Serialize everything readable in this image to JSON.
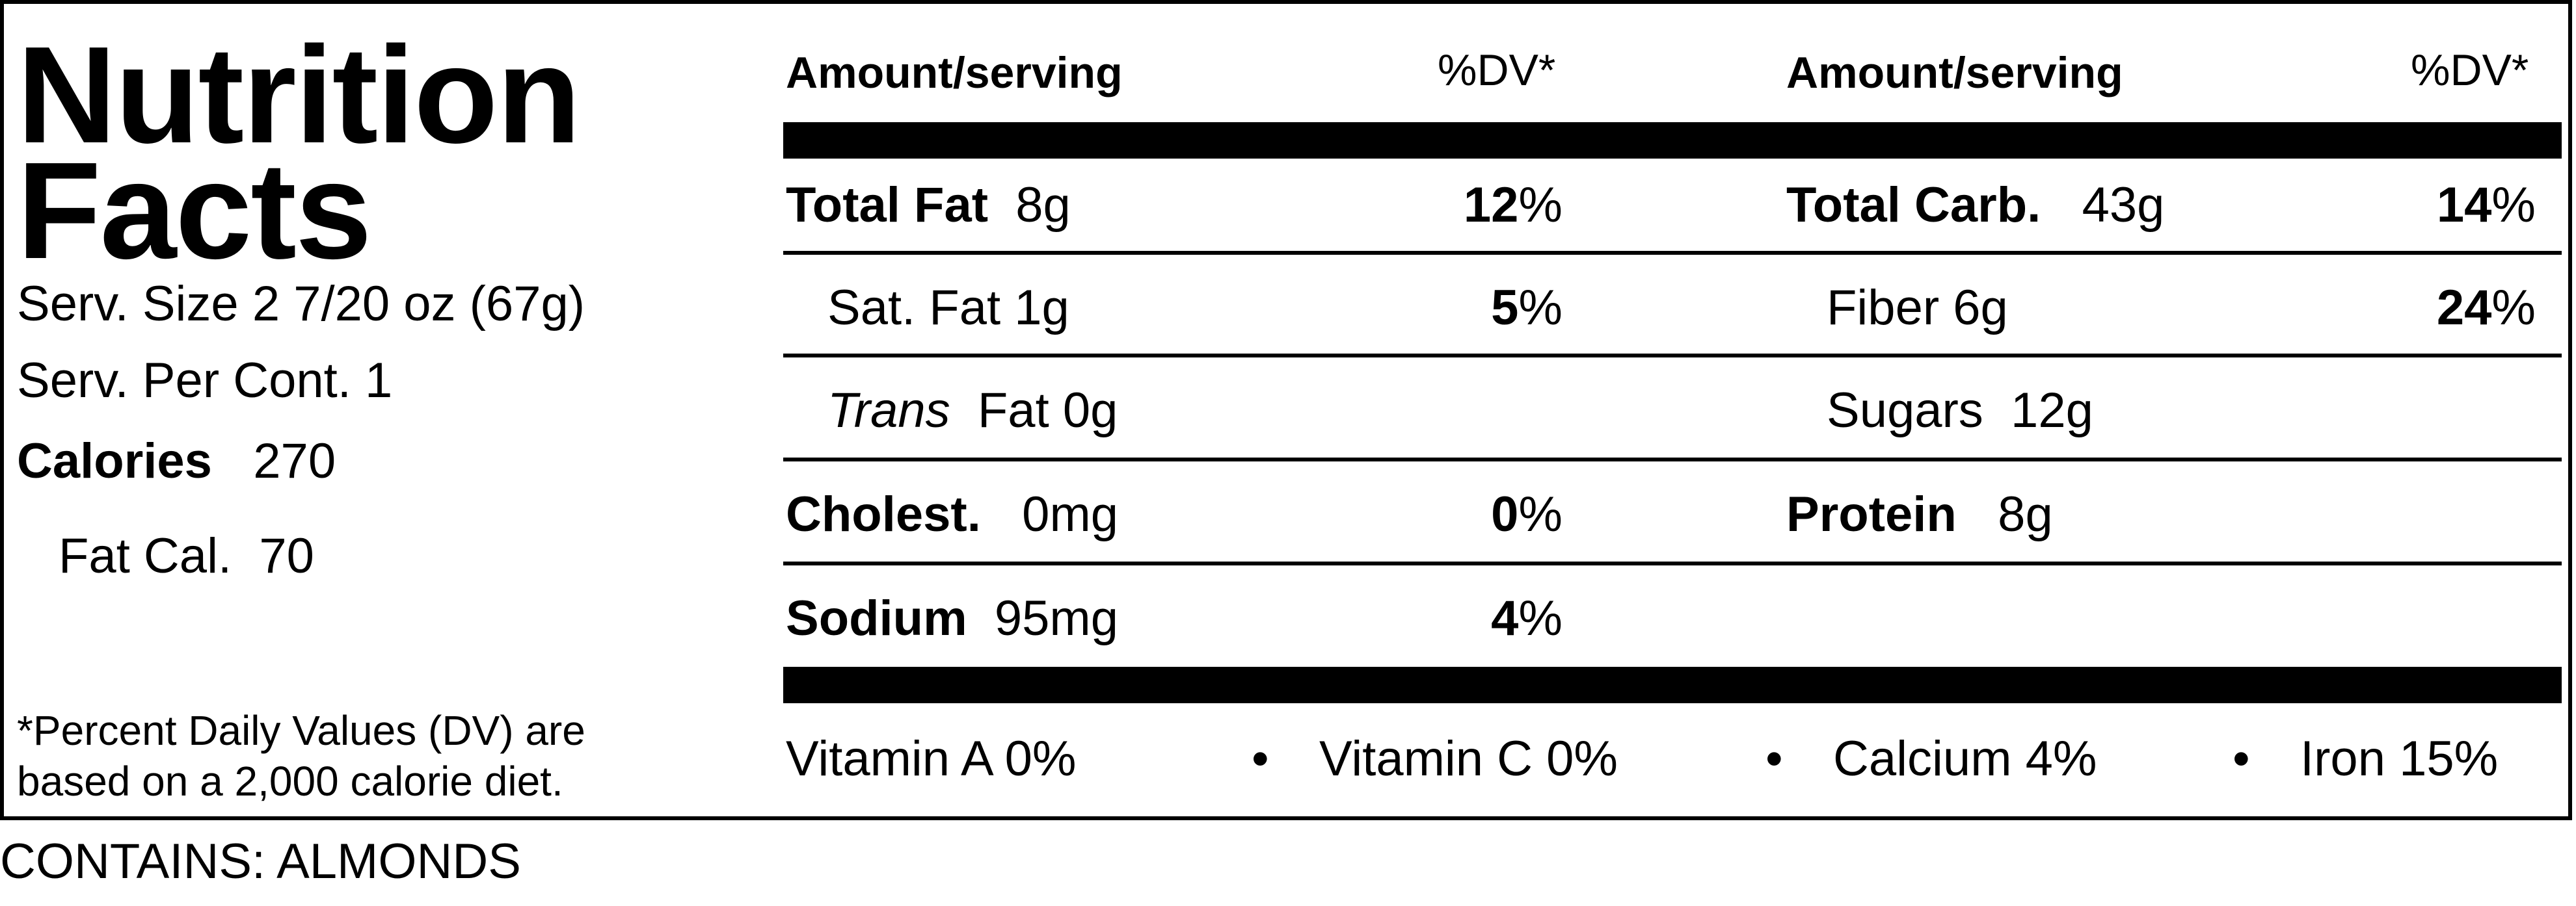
{
  "left": {
    "title_line1": "Nutrition",
    "title_line2": "Facts",
    "serving_size": "Serv. Size 2 7/20 oz  (67g)",
    "servings_per_container": "Serv. Per Cont. 1",
    "calories_label": "Calories",
    "calories_value": "270",
    "fat_calories_label": "Fat Cal.",
    "fat_calories_value": "70",
    "footnote_line1": "*Percent Daily Values (DV) are",
    "footnote_line2": "based on a 2,000 calorie diet."
  },
  "headers": {
    "amount": "Amount/serving",
    "dv": "%DV*"
  },
  "col1": [
    {
      "name": "Total Fat",
      "amount": "8g",
      "dv_num": "12",
      "dv_unit": "%"
    },
    {
      "name": "Sat. Fat",
      "amount": "1g",
      "dv_num": "5",
      "dv_unit": "%"
    },
    {
      "name_italic": "Trans",
      "name": "Fat",
      "amount": "0g"
    },
    {
      "name": "Cholest.",
      "amount": "0mg",
      "dv_num": "0",
      "dv_unit": "%"
    },
    {
      "name": "Sodium",
      "amount": "95mg",
      "dv_num": "4",
      "dv_unit": "%"
    }
  ],
  "col2": [
    {
      "name": "Total Carb.",
      "amount": "43g",
      "dv_num": "14",
      "dv_unit": "%"
    },
    {
      "name": "Fiber",
      "amount": "6g",
      "dv_num": "24",
      "dv_unit": "%"
    },
    {
      "name": "Sugars",
      "amount": "12g"
    },
    {
      "name": "Protein",
      "amount": "8g"
    }
  ],
  "vitamins": [
    {
      "text": "Vitamin A  0%"
    },
    {
      "text": "Vitamin C 0%"
    },
    {
      "text": "Calcium 4%"
    },
    {
      "text": "Iron  15%"
    }
  ],
  "bullet": "•",
  "contains": "CONTAINS: ALMONDS"
}
